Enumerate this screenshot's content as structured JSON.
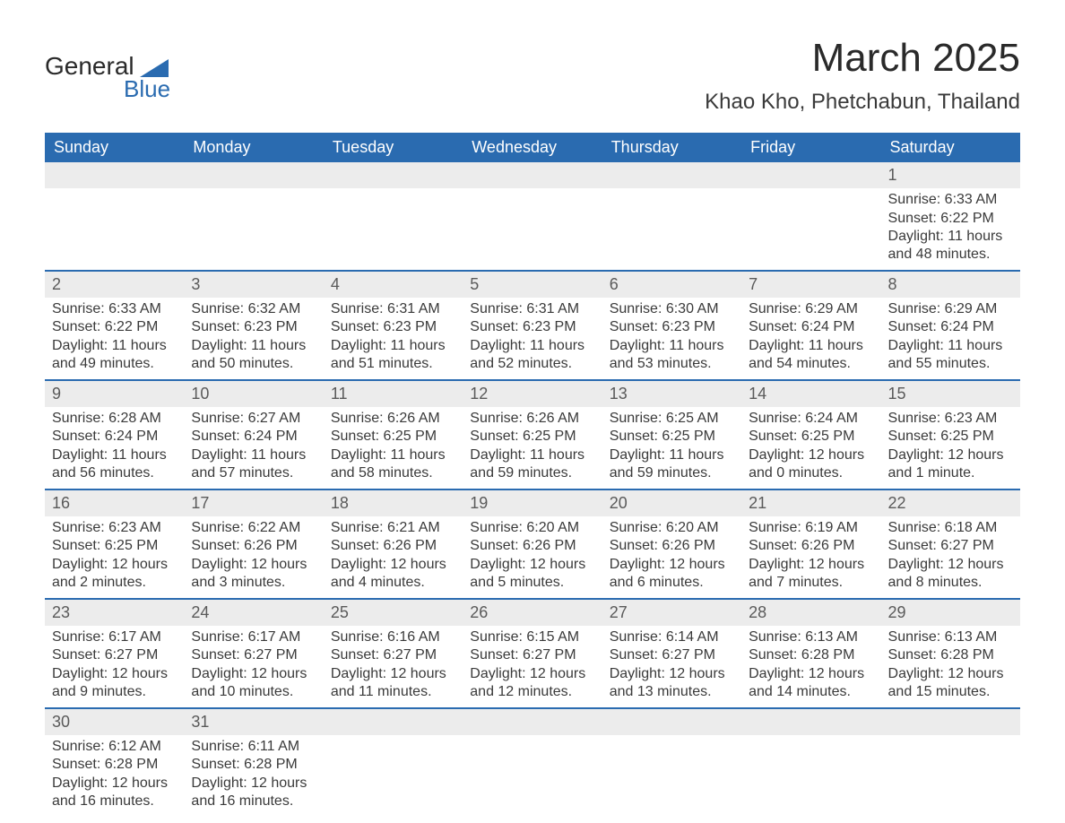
{
  "logo": {
    "top": "General",
    "bottom": "Blue",
    "shape_color": "#2a6bb0"
  },
  "title": "March 2025",
  "location": "Khao Kho, Phetchabun, Thailand",
  "colors": {
    "header_bg": "#2a6bb0",
    "header_text": "#ffffff",
    "daynum_bg": "#ececec",
    "text": "#3a3a3a",
    "border": "#2a6bb0"
  },
  "day_headers": [
    "Sunday",
    "Monday",
    "Tuesday",
    "Wednesday",
    "Thursday",
    "Friday",
    "Saturday"
  ],
  "weeks": [
    [
      {
        "day": "",
        "lines": [
          "",
          "",
          "",
          ""
        ]
      },
      {
        "day": "",
        "lines": [
          "",
          "",
          "",
          ""
        ]
      },
      {
        "day": "",
        "lines": [
          "",
          "",
          "",
          ""
        ]
      },
      {
        "day": "",
        "lines": [
          "",
          "",
          "",
          ""
        ]
      },
      {
        "day": "",
        "lines": [
          "",
          "",
          "",
          ""
        ]
      },
      {
        "day": "",
        "lines": [
          "",
          "",
          "",
          ""
        ]
      },
      {
        "day": "1",
        "lines": [
          "Sunrise: 6:33 AM",
          "Sunset: 6:22 PM",
          "Daylight: 11 hours",
          "and 48 minutes."
        ]
      }
    ],
    [
      {
        "day": "2",
        "lines": [
          "Sunrise: 6:33 AM",
          "Sunset: 6:22 PM",
          "Daylight: 11 hours",
          "and 49 minutes."
        ]
      },
      {
        "day": "3",
        "lines": [
          "Sunrise: 6:32 AM",
          "Sunset: 6:23 PM",
          "Daylight: 11 hours",
          "and 50 minutes."
        ]
      },
      {
        "day": "4",
        "lines": [
          "Sunrise: 6:31 AM",
          "Sunset: 6:23 PM",
          "Daylight: 11 hours",
          "and 51 minutes."
        ]
      },
      {
        "day": "5",
        "lines": [
          "Sunrise: 6:31 AM",
          "Sunset: 6:23 PM",
          "Daylight: 11 hours",
          "and 52 minutes."
        ]
      },
      {
        "day": "6",
        "lines": [
          "Sunrise: 6:30 AM",
          "Sunset: 6:23 PM",
          "Daylight: 11 hours",
          "and 53 minutes."
        ]
      },
      {
        "day": "7",
        "lines": [
          "Sunrise: 6:29 AM",
          "Sunset: 6:24 PM",
          "Daylight: 11 hours",
          "and 54 minutes."
        ]
      },
      {
        "day": "8",
        "lines": [
          "Sunrise: 6:29 AM",
          "Sunset: 6:24 PM",
          "Daylight: 11 hours",
          "and 55 minutes."
        ]
      }
    ],
    [
      {
        "day": "9",
        "lines": [
          "Sunrise: 6:28 AM",
          "Sunset: 6:24 PM",
          "Daylight: 11 hours",
          "and 56 minutes."
        ]
      },
      {
        "day": "10",
        "lines": [
          "Sunrise: 6:27 AM",
          "Sunset: 6:24 PM",
          "Daylight: 11 hours",
          "and 57 minutes."
        ]
      },
      {
        "day": "11",
        "lines": [
          "Sunrise: 6:26 AM",
          "Sunset: 6:25 PM",
          "Daylight: 11 hours",
          "and 58 minutes."
        ]
      },
      {
        "day": "12",
        "lines": [
          "Sunrise: 6:26 AM",
          "Sunset: 6:25 PM",
          "Daylight: 11 hours",
          "and 59 minutes."
        ]
      },
      {
        "day": "13",
        "lines": [
          "Sunrise: 6:25 AM",
          "Sunset: 6:25 PM",
          "Daylight: 11 hours",
          "and 59 minutes."
        ]
      },
      {
        "day": "14",
        "lines": [
          "Sunrise: 6:24 AM",
          "Sunset: 6:25 PM",
          "Daylight: 12 hours",
          "and 0 minutes."
        ]
      },
      {
        "day": "15",
        "lines": [
          "Sunrise: 6:23 AM",
          "Sunset: 6:25 PM",
          "Daylight: 12 hours",
          "and 1 minute."
        ]
      }
    ],
    [
      {
        "day": "16",
        "lines": [
          "Sunrise: 6:23 AM",
          "Sunset: 6:25 PM",
          "Daylight: 12 hours",
          "and 2 minutes."
        ]
      },
      {
        "day": "17",
        "lines": [
          "Sunrise: 6:22 AM",
          "Sunset: 6:26 PM",
          "Daylight: 12 hours",
          "and 3 minutes."
        ]
      },
      {
        "day": "18",
        "lines": [
          "Sunrise: 6:21 AM",
          "Sunset: 6:26 PM",
          "Daylight: 12 hours",
          "and 4 minutes."
        ]
      },
      {
        "day": "19",
        "lines": [
          "Sunrise: 6:20 AM",
          "Sunset: 6:26 PM",
          "Daylight: 12 hours",
          "and 5 minutes."
        ]
      },
      {
        "day": "20",
        "lines": [
          "Sunrise: 6:20 AM",
          "Sunset: 6:26 PM",
          "Daylight: 12 hours",
          "and 6 minutes."
        ]
      },
      {
        "day": "21",
        "lines": [
          "Sunrise: 6:19 AM",
          "Sunset: 6:26 PM",
          "Daylight: 12 hours",
          "and 7 minutes."
        ]
      },
      {
        "day": "22",
        "lines": [
          "Sunrise: 6:18 AM",
          "Sunset: 6:27 PM",
          "Daylight: 12 hours",
          "and 8 minutes."
        ]
      }
    ],
    [
      {
        "day": "23",
        "lines": [
          "Sunrise: 6:17 AM",
          "Sunset: 6:27 PM",
          "Daylight: 12 hours",
          "and 9 minutes."
        ]
      },
      {
        "day": "24",
        "lines": [
          "Sunrise: 6:17 AM",
          "Sunset: 6:27 PM",
          "Daylight: 12 hours",
          "and 10 minutes."
        ]
      },
      {
        "day": "25",
        "lines": [
          "Sunrise: 6:16 AM",
          "Sunset: 6:27 PM",
          "Daylight: 12 hours",
          "and 11 minutes."
        ]
      },
      {
        "day": "26",
        "lines": [
          "Sunrise: 6:15 AM",
          "Sunset: 6:27 PM",
          "Daylight: 12 hours",
          "and 12 minutes."
        ]
      },
      {
        "day": "27",
        "lines": [
          "Sunrise: 6:14 AM",
          "Sunset: 6:27 PM",
          "Daylight: 12 hours",
          "and 13 minutes."
        ]
      },
      {
        "day": "28",
        "lines": [
          "Sunrise: 6:13 AM",
          "Sunset: 6:28 PM",
          "Daylight: 12 hours",
          "and 14 minutes."
        ]
      },
      {
        "day": "29",
        "lines": [
          "Sunrise: 6:13 AM",
          "Sunset: 6:28 PM",
          "Daylight: 12 hours",
          "and 15 minutes."
        ]
      }
    ],
    [
      {
        "day": "30",
        "lines": [
          "Sunrise: 6:12 AM",
          "Sunset: 6:28 PM",
          "Daylight: 12 hours",
          "and 16 minutes."
        ]
      },
      {
        "day": "31",
        "lines": [
          "Sunrise: 6:11 AM",
          "Sunset: 6:28 PM",
          "Daylight: 12 hours",
          "and 16 minutes."
        ]
      },
      {
        "day": "",
        "lines": [
          "",
          "",
          "",
          ""
        ]
      },
      {
        "day": "",
        "lines": [
          "",
          "",
          "",
          ""
        ]
      },
      {
        "day": "",
        "lines": [
          "",
          "",
          "",
          ""
        ]
      },
      {
        "day": "",
        "lines": [
          "",
          "",
          "",
          ""
        ]
      },
      {
        "day": "",
        "lines": [
          "",
          "",
          "",
          ""
        ]
      }
    ]
  ]
}
